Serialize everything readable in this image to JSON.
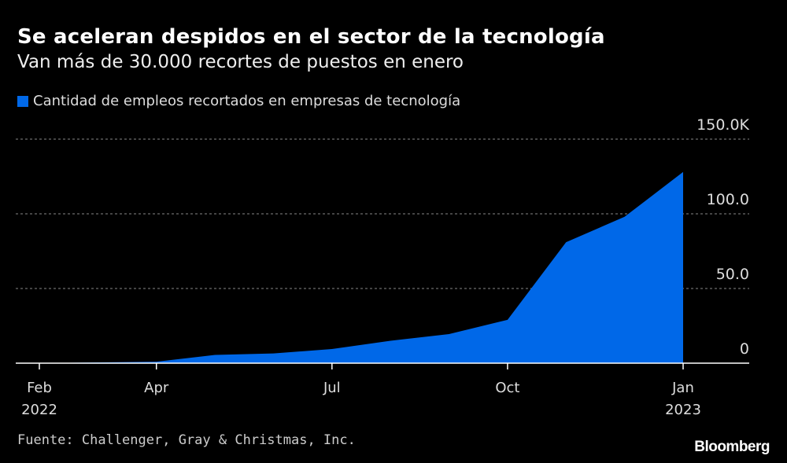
{
  "chart_data": {
    "type": "area",
    "title": "Se aceleran despidos en el sector de la tecnología",
    "subtitle": "Van más de 30.000 recortes de puestos en enero",
    "legend": [
      "Cantidad de empleos recortados en empresas de tecnología"
    ],
    "legend_placement": "top-left",
    "x": [
      "2022-02",
      "2022-03",
      "2022-04",
      "2022-05",
      "2022-06",
      "2022-07",
      "2022-08",
      "2022-09",
      "2022-10",
      "2022-11",
      "2022-12",
      "2023-01"
    ],
    "series": [
      {
        "name": "Cantidad de empleos recortados en empresas de tecnología",
        "values": [
          0,
          0.5,
          1,
          5.5,
          6.5,
          9.5,
          15,
          19.5,
          29,
          81,
          98,
          128
        ]
      }
    ],
    "x_ticks": [
      {
        "index": 0,
        "label": "Feb",
        "sub": "2022"
      },
      {
        "index": 2,
        "label": "Apr",
        "sub": ""
      },
      {
        "index": 5,
        "label": "Jul",
        "sub": ""
      },
      {
        "index": 8,
        "label": "Oct",
        "sub": ""
      },
      {
        "index": 11,
        "label": "Jan",
        "sub": "2023"
      }
    ],
    "y_ticks": [
      {
        "value": 0,
        "label": "0"
      },
      {
        "value": 50,
        "label": "50.0"
      },
      {
        "value": 100,
        "label": "100.0"
      },
      {
        "value": 150,
        "label": "150.0K"
      }
    ],
    "ylim": [
      0,
      150
    ],
    "grid": true,
    "color": "#0068e8"
  },
  "source": "Fuente: Challenger, Gray & Christmas, Inc.",
  "logo": "Bloomberg"
}
